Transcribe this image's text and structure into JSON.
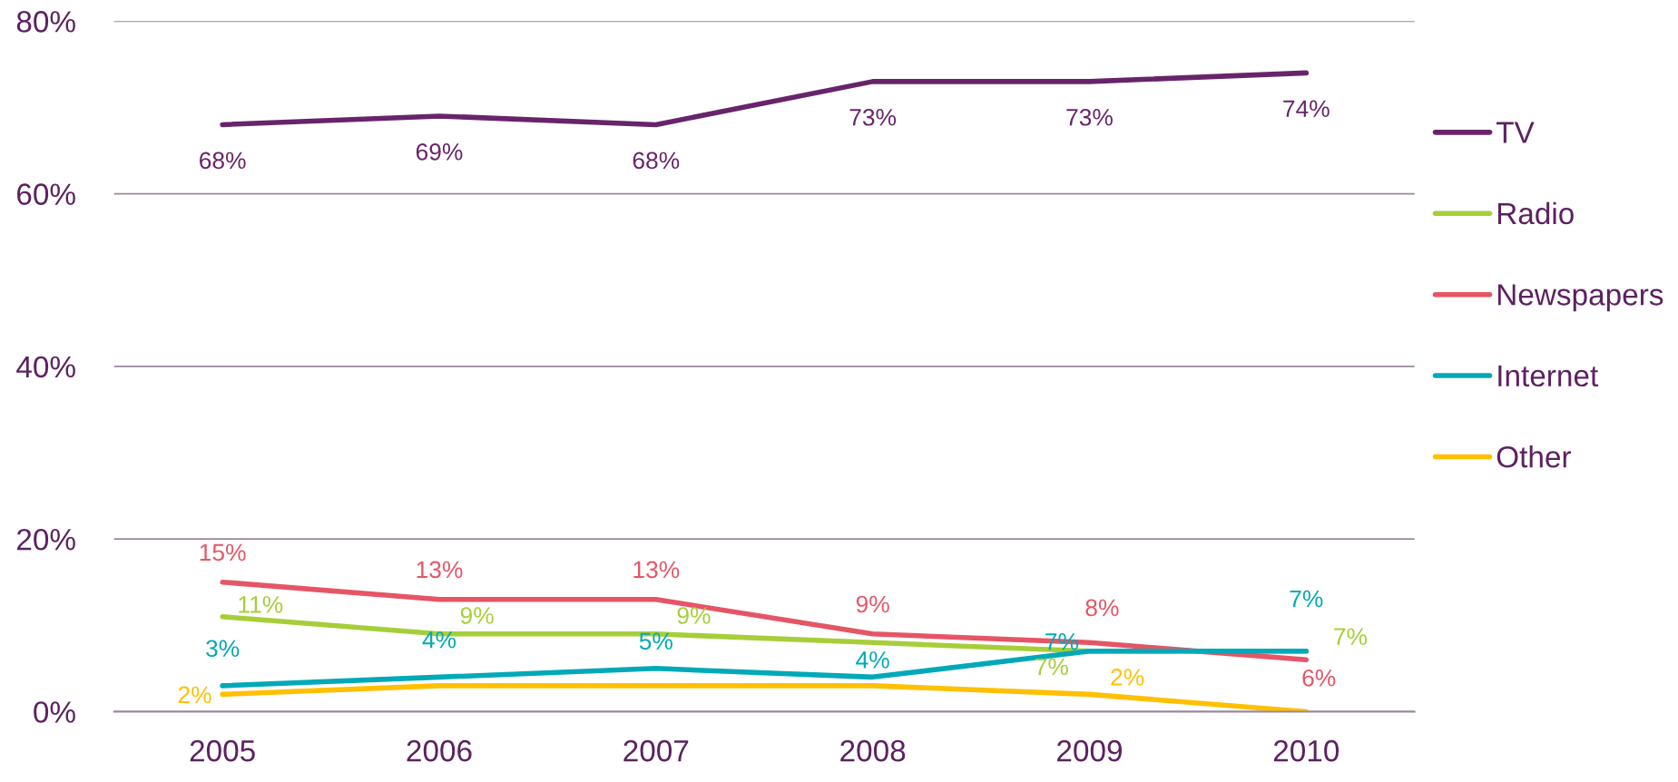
{
  "chart_data": {
    "type": "line",
    "categories": [
      "2005",
      "2006",
      "2007",
      "2008",
      "2009",
      "2010"
    ],
    "ylim": [
      0,
      0.8
    ],
    "yticks": [
      {
        "value": 0,
        "label": "0%"
      },
      {
        "value": 0.2,
        "label": "20%"
      },
      {
        "value": 0.4,
        "label": "40%"
      },
      {
        "value": 0.6,
        "label": "60%"
      },
      {
        "value": 0.8,
        "label": "80%"
      }
    ],
    "grid": "y",
    "legend": "right",
    "marker": "none",
    "line_style": "solid",
    "series": [
      {
        "name": "TV",
        "color": "#68246b",
        "values": [
          0.68,
          0.69,
          0.68,
          0.73,
          0.73,
          0.74
        ],
        "value_labels": [
          "68%",
          "69%",
          "68%",
          "73%",
          "73%",
          "74%"
        ]
      },
      {
        "name": "Radio",
        "color": "#a6ce39",
        "values": [
          0.11,
          0.09,
          0.09,
          0.08,
          0.07,
          0.07
        ],
        "value_labels": [
          "11%",
          "9%",
          "9%",
          null,
          "7%",
          "7%"
        ]
      },
      {
        "name": "Newspapers",
        "color": "#e55566",
        "values": [
          0.15,
          0.13,
          0.13,
          0.09,
          0.08,
          0.06
        ],
        "value_labels": [
          "15%",
          "13%",
          "13%",
          "9%",
          "8%",
          "6%"
        ]
      },
      {
        "name": "Internet",
        "color": "#00a9b8",
        "values": [
          0.03,
          0.04,
          0.05,
          0.04,
          0.07,
          0.07
        ],
        "value_labels": [
          "3%",
          "4%",
          "5%",
          "4%",
          "7%",
          "7%"
        ]
      },
      {
        "name": "Other",
        "color": "#ffc000",
        "values": [
          0.02,
          0.03,
          0.03,
          0.03,
          0.02,
          0.0
        ],
        "value_labels": [
          "2%",
          null,
          null,
          null,
          "2%",
          null
        ]
      }
    ]
  }
}
